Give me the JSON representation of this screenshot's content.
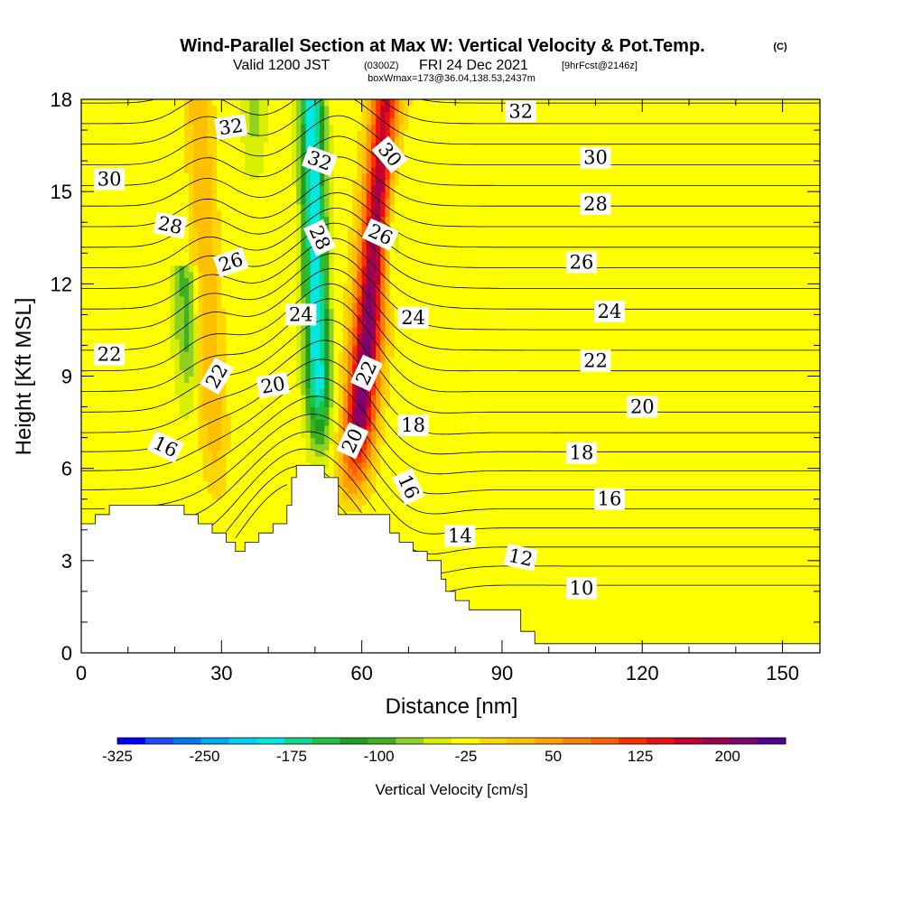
{
  "title": "Wind-Parallel Section at Max W: Vertical Velocity & Pot.Temp.",
  "copyright": "(C)",
  "subtitle": {
    "valid": "Valid 1200 JST",
    "utc": "(0300Z)",
    "date": "FRI 24 Dec 2021",
    "fcst": "[9hrFcst@2146z]"
  },
  "box_info": "boxWmax=173@36.04,138.53,2437m",
  "chart_data": {
    "type": "heatmap",
    "xlabel": "Distance [nm]",
    "ylabel": "Height [Kft MSL]",
    "xlim": [
      0,
      158
    ],
    "ylim": [
      0,
      18
    ],
    "x_ticks": [
      0,
      30,
      60,
      90,
      120,
      150
    ],
    "y_ticks": [
      0,
      3,
      6,
      9,
      12,
      15,
      18
    ],
    "colorbar": {
      "label": "Vertical Velocity [cm/s]",
      "range": [
        -325,
        250
      ],
      "bin_width": 25,
      "tick_values": [
        -325,
        -250,
        -175,
        -100,
        -25,
        50,
        125,
        200
      ],
      "colors": [
        "#0000ff",
        "#1d4cff",
        "#0078f0",
        "#00a8f0",
        "#00d0f0",
        "#00e8e0",
        "#10d890",
        "#20c040",
        "#20a020",
        "#40b020",
        "#90d020",
        "#d8f000",
        "#ffff00",
        "#ffd700",
        "#ffc000",
        "#ffa000",
        "#ff8000",
        "#ff6000",
        "#ff3000",
        "#e81010",
        "#c00030",
        "#a00050",
        "#800070",
        "#500090"
      ]
    },
    "wv_background": -10,
    "wv_features": [
      {
        "kind": "updraft",
        "x": 58,
        "z0": 5,
        "z1": 18,
        "lean": 0.6,
        "peak": 250
      },
      {
        "kind": "downdraft",
        "x": 51,
        "z0": 6.2,
        "z1": 18,
        "lean": -0.15,
        "peak": -190
      },
      {
        "kind": "downdraft",
        "x": 65,
        "z0": 11,
        "z1": 18,
        "lean": 0.3,
        "peak": -90
      },
      {
        "kind": "updraft",
        "x": 29,
        "z0": 5,
        "z1": 18,
        "lean": -0.3,
        "peak": 60
      },
      {
        "kind": "downdraft",
        "x": 23,
        "z0": 7.5,
        "z1": 12,
        "lean": -0.2,
        "peak": -70
      },
      {
        "kind": "downdraft",
        "x": 37,
        "z0": 15,
        "z1": 18,
        "lean": 0,
        "peak": -55
      }
    ],
    "terrain": [
      [
        0,
        4.2
      ],
      [
        3,
        4.2
      ],
      [
        3,
        4.5
      ],
      [
        6,
        4.5
      ],
      [
        6,
        4.8
      ],
      [
        22,
        4.8
      ],
      [
        22,
        4.5
      ],
      [
        25,
        4.5
      ],
      [
        25,
        4.2
      ],
      [
        28,
        4.2
      ],
      [
        28,
        3.9
      ],
      [
        31,
        3.9
      ],
      [
        31,
        3.6
      ],
      [
        33,
        3.6
      ],
      [
        33,
        3.3
      ],
      [
        35,
        3.3
      ],
      [
        35,
        3.6
      ],
      [
        38,
        3.6
      ],
      [
        38,
        3.9
      ],
      [
        41,
        3.9
      ],
      [
        41,
        4.2
      ],
      [
        44,
        4.2
      ],
      [
        44,
        4.8
      ],
      [
        45,
        4.8
      ],
      [
        45,
        5.7
      ],
      [
        46,
        5.7
      ],
      [
        46,
        6.1
      ],
      [
        52,
        6.1
      ],
      [
        52,
        5.7
      ],
      [
        55,
        5.7
      ],
      [
        55,
        4.5
      ],
      [
        66,
        4.5
      ],
      [
        66,
        3.9
      ],
      [
        68,
        3.9
      ],
      [
        68,
        3.6
      ],
      [
        71,
        3.6
      ],
      [
        71,
        3.3
      ],
      [
        74,
        3.3
      ],
      [
        74,
        3.0
      ],
      [
        77,
        3.0
      ],
      [
        77,
        2.4
      ],
      [
        78,
        2.4
      ],
      [
        78,
        2.0
      ],
      [
        80,
        2.0
      ],
      [
        80,
        1.7
      ],
      [
        83,
        1.7
      ],
      [
        83,
        1.4
      ],
      [
        94,
        1.4
      ],
      [
        94,
        0.7
      ],
      [
        97,
        0.7
      ],
      [
        97,
        0.3
      ],
      [
        158,
        0.3
      ]
    ],
    "theta_levels": [
      10,
      11,
      12,
      13,
      14,
      15,
      16,
      17,
      18,
      19,
      20,
      21,
      22,
      23,
      24,
      25,
      26,
      27,
      28,
      29,
      30,
      31,
      32,
      33,
      34
    ],
    "theta_labels": [
      {
        "v": "32",
        "x": 32,
        "z": 17.1,
        "rot": -8
      },
      {
        "v": "30",
        "x": 6,
        "z": 15.4,
        "rot": 0
      },
      {
        "v": "28",
        "x": 19,
        "z": 13.9,
        "rot": 12
      },
      {
        "v": "26",
        "x": 32,
        "z": 12.7,
        "rot": -18
      },
      {
        "v": "24",
        "x": 47,
        "z": 11.0,
        "rot": 0
      },
      {
        "v": "22",
        "x": 6,
        "z": 9.7,
        "rot": 0
      },
      {
        "v": "22",
        "x": 29,
        "z": 9.0,
        "rot": -60
      },
      {
        "v": "20",
        "x": 41,
        "z": 8.7,
        "rot": -10
      },
      {
        "v": "16",
        "x": 18,
        "z": 6.7,
        "rot": 25
      },
      {
        "v": "32",
        "x": 51,
        "z": 16.0,
        "rot": 20
      },
      {
        "v": "28",
        "x": 51,
        "z": 13.5,
        "rot": 65
      },
      {
        "v": "30",
        "x": 66,
        "z": 16.2,
        "rot": 50
      },
      {
        "v": "26",
        "x": 64,
        "z": 13.6,
        "rot": 25
      },
      {
        "v": "22",
        "x": 61,
        "z": 9.1,
        "rot": -65
      },
      {
        "v": "20",
        "x": 58,
        "z": 6.9,
        "rot": -65
      },
      {
        "v": "24",
        "x": 71,
        "z": 10.9,
        "rot": 0
      },
      {
        "v": "18",
        "x": 71,
        "z": 7.4,
        "rot": 0
      },
      {
        "v": "16",
        "x": 70,
        "z": 5.4,
        "rot": 65
      },
      {
        "v": "14",
        "x": 81,
        "z": 3.8,
        "rot": 0
      },
      {
        "v": "12",
        "x": 94,
        "z": 3.1,
        "rot": 12
      },
      {
        "v": "10",
        "x": 107,
        "z": 2.1,
        "rot": 0
      },
      {
        "v": "32",
        "x": 94,
        "z": 17.6,
        "rot": 0
      },
      {
        "v": "30",
        "x": 110,
        "z": 16.1,
        "rot": 0
      },
      {
        "v": "28",
        "x": 110,
        "z": 14.6,
        "rot": 0
      },
      {
        "v": "26",
        "x": 107,
        "z": 12.7,
        "rot": 0
      },
      {
        "v": "24",
        "x": 113,
        "z": 11.1,
        "rot": 0
      },
      {
        "v": "22",
        "x": 110,
        "z": 9.5,
        "rot": 0
      },
      {
        "v": "20",
        "x": 120,
        "z": 8.0,
        "rot": 0
      },
      {
        "v": "18",
        "x": 107,
        "z": 6.5,
        "rot": 0
      },
      {
        "v": "16",
        "x": 113,
        "z": 5.0,
        "rot": 0
      }
    ]
  }
}
